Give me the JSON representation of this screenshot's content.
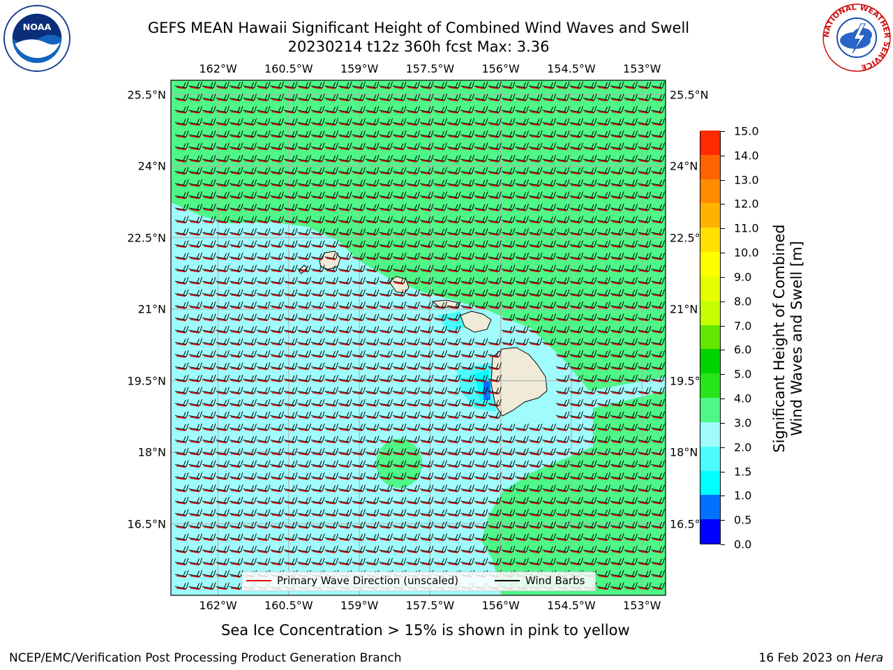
{
  "title": {
    "line1": "GEFS MEAN Hawaii Significant Height of Combined Wind Waves and Swell",
    "line2": "20230214 t12z 360h fcst   Max: 3.36"
  },
  "map": {
    "lon_labels": [
      "162°W",
      "160.5°W",
      "159°W",
      "157.5°W",
      "156°W",
      "154.5°W",
      "153°W"
    ],
    "lat_labels": [
      "25.5°N",
      "24°N",
      "22.5°N",
      "21°N",
      "19.5°N",
      "18°N",
      "16.5°N"
    ],
    "lon_range": [
      -163.0,
      -152.5
    ],
    "lat_range": [
      15.0,
      25.8
    ],
    "colors": {
      "land": "#efebd8",
      "grid": "#b0b0b0",
      "wave_arrow": "#e00000",
      "wind_barb": "#000000"
    }
  },
  "legend": {
    "items": [
      {
        "label": "Primary Wave Direction (unscaled)",
        "color": "#e00000"
      },
      {
        "label": "Wind Barbs",
        "color": "#000000"
      }
    ]
  },
  "colorbar": {
    "title_line1": "Significant Height of Combined",
    "title_line2": "Wind Waves and Swell [m]",
    "tick_labels": [
      "0.0",
      "0.5",
      "1.0",
      "1.5",
      "2.0",
      "3.0",
      "4.0",
      "5.0",
      "6.0",
      "7.0",
      "8.0",
      "9.0",
      "10.0",
      "11.0",
      "12.0",
      "13.0",
      "14.0",
      "15.0"
    ],
    "colors": [
      "#0000ff",
      "#0072ff",
      "#00ffff",
      "#4cfcfc",
      "#a0fcfc",
      "#4ef787",
      "#26e51a",
      "#00d400",
      "#63e600",
      "#c6ff00",
      "#e6ff00",
      "#ffff00",
      "#ffe000",
      "#ffb300",
      "#ff8c00",
      "#ff6200",
      "#ff2a00",
      "#ff0000"
    ]
  },
  "chart_data": {
    "type": "heatmap",
    "title": "GEFS MEAN Hawaii Significant Height of Combined Wind Waves and Swell",
    "variable_units": "m",
    "max_value": 3.36,
    "levels": [
      0.0,
      0.5,
      1.0,
      1.5,
      2.0,
      3.0,
      4.0,
      5.0,
      6.0,
      7.0,
      8.0,
      9.0,
      10.0,
      11.0,
      12.0,
      13.0,
      14.0,
      15.0
    ]
  },
  "notes": {
    "sea_ice": "Sea Ice Concentration > 15% is shown in pink to yellow"
  },
  "footer": {
    "left": "NCEP/EMC/Verification Post Processing Product Generation Branch",
    "right_prefix": "16 Feb 2023 on ",
    "right_italic": "Hera"
  },
  "logos": {
    "noaa": "NOAA",
    "nws_ring": "NATIONAL WEATHER SERVICE"
  }
}
